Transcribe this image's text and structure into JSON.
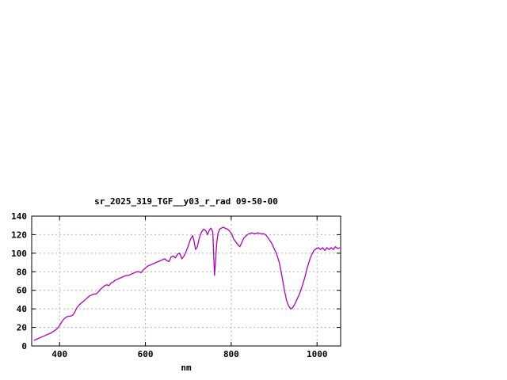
{
  "window": {
    "background": "#ffffff"
  },
  "chart_data": {
    "type": "line",
    "title": "sr_2025_319_TGF__y03_r_rad 09-50-00",
    "xlabel": "nm",
    "ylabel": "",
    "xlim": [
      335,
      1055
    ],
    "ylim": [
      0,
      140
    ],
    "xticks": [
      400,
      600,
      800,
      1000
    ],
    "yticks": [
      0,
      20,
      40,
      60,
      80,
      100,
      120,
      140
    ],
    "grid": true,
    "legend_position": "none",
    "colors": {
      "line": "#b400b4",
      "grid": "#b4b4b4",
      "border": "#000000",
      "text": "#000000"
    },
    "points": [
      [
        340,
        6
      ],
      [
        350,
        8
      ],
      [
        360,
        10
      ],
      [
        370,
        12
      ],
      [
        380,
        14
      ],
      [
        390,
        17
      ],
      [
        395,
        19
      ],
      [
        400,
        22
      ],
      [
        405,
        26
      ],
      [
        410,
        29
      ],
      [
        415,
        31
      ],
      [
        420,
        32
      ],
      [
        425,
        32
      ],
      [
        430,
        33
      ],
      [
        435,
        36
      ],
      [
        440,
        41
      ],
      [
        445,
        44
      ],
      [
        450,
        46
      ],
      [
        455,
        48
      ],
      [
        460,
        50
      ],
      [
        465,
        52
      ],
      [
        470,
        54
      ],
      [
        475,
        55
      ],
      [
        480,
        56
      ],
      [
        485,
        56
      ],
      [
        490,
        58
      ],
      [
        495,
        61
      ],
      [
        500,
        63
      ],
      [
        505,
        65
      ],
      [
        510,
        66
      ],
      [
        515,
        65
      ],
      [
        520,
        68
      ],
      [
        525,
        69
      ],
      [
        530,
        71
      ],
      [
        535,
        72
      ],
      [
        540,
        73
      ],
      [
        545,
        74
      ],
      [
        550,
        75
      ],
      [
        555,
        76
      ],
      [
        560,
        76
      ],
      [
        565,
        77
      ],
      [
        570,
        78
      ],
      [
        575,
        79
      ],
      [
        580,
        80
      ],
      [
        585,
        80
      ],
      [
        590,
        79
      ],
      [
        595,
        82
      ],
      [
        600,
        84
      ],
      [
        605,
        86
      ],
      [
        610,
        87
      ],
      [
        615,
        88
      ],
      [
        620,
        89
      ],
      [
        625,
        90
      ],
      [
        630,
        91
      ],
      [
        635,
        92
      ],
      [
        640,
        93
      ],
      [
        645,
        94
      ],
      [
        650,
        92
      ],
      [
        655,
        91
      ],
      [
        660,
        96
      ],
      [
        665,
        97
      ],
      [
        670,
        95
      ],
      [
        675,
        99
      ],
      [
        680,
        100
      ],
      [
        685,
        94
      ],
      [
        690,
        97
      ],
      [
        695,
        102
      ],
      [
        700,
        108
      ],
      [
        705,
        115
      ],
      [
        710,
        119
      ],
      [
        713,
        114
      ],
      [
        717,
        104
      ],
      [
        721,
        107
      ],
      [
        726,
        117
      ],
      [
        731,
        123
      ],
      [
        736,
        126
      ],
      [
        741,
        124
      ],
      [
        745,
        120
      ],
      [
        749,
        125
      ],
      [
        753,
        127
      ],
      [
        757,
        123
      ],
      [
        759,
        100
      ],
      [
        761,
        76
      ],
      [
        763,
        88
      ],
      [
        766,
        110
      ],
      [
        769,
        121
      ],
      [
        773,
        126
      ],
      [
        777,
        127
      ],
      [
        781,
        128
      ],
      [
        786,
        127
      ],
      [
        791,
        126
      ],
      [
        796,
        124
      ],
      [
        801,
        121
      ],
      [
        806,
        115
      ],
      [
        811,
        112
      ],
      [
        816,
        109
      ],
      [
        820,
        107
      ],
      [
        824,
        111
      ],
      [
        829,
        116
      ],
      [
        835,
        119
      ],
      [
        841,
        121
      ],
      [
        848,
        122
      ],
      [
        855,
        121
      ],
      [
        862,
        122
      ],
      [
        869,
        121
      ],
      [
        876,
        121
      ],
      [
        882,
        119
      ],
      [
        888,
        115
      ],
      [
        894,
        111
      ],
      [
        900,
        105
      ],
      [
        906,
        99
      ],
      [
        912,
        90
      ],
      [
        918,
        76
      ],
      [
        924,
        60
      ],
      [
        929,
        49
      ],
      [
        934,
        43
      ],
      [
        939,
        40
      ],
      [
        943,
        41
      ],
      [
        948,
        45
      ],
      [
        953,
        50
      ],
      [
        959,
        56
      ],
      [
        965,
        64
      ],
      [
        971,
        73
      ],
      [
        977,
        84
      ],
      [
        983,
        93
      ],
      [
        988,
        99
      ],
      [
        993,
        103
      ],
      [
        998,
        105
      ],
      [
        1003,
        106
      ],
      [
        1008,
        104
      ],
      [
        1013,
        106
      ],
      [
        1018,
        103
      ],
      [
        1023,
        106
      ],
      [
        1028,
        104
      ],
      [
        1033,
        106
      ],
      [
        1038,
        104
      ],
      [
        1043,
        107
      ],
      [
        1048,
        105
      ],
      [
        1053,
        106
      ]
    ]
  }
}
